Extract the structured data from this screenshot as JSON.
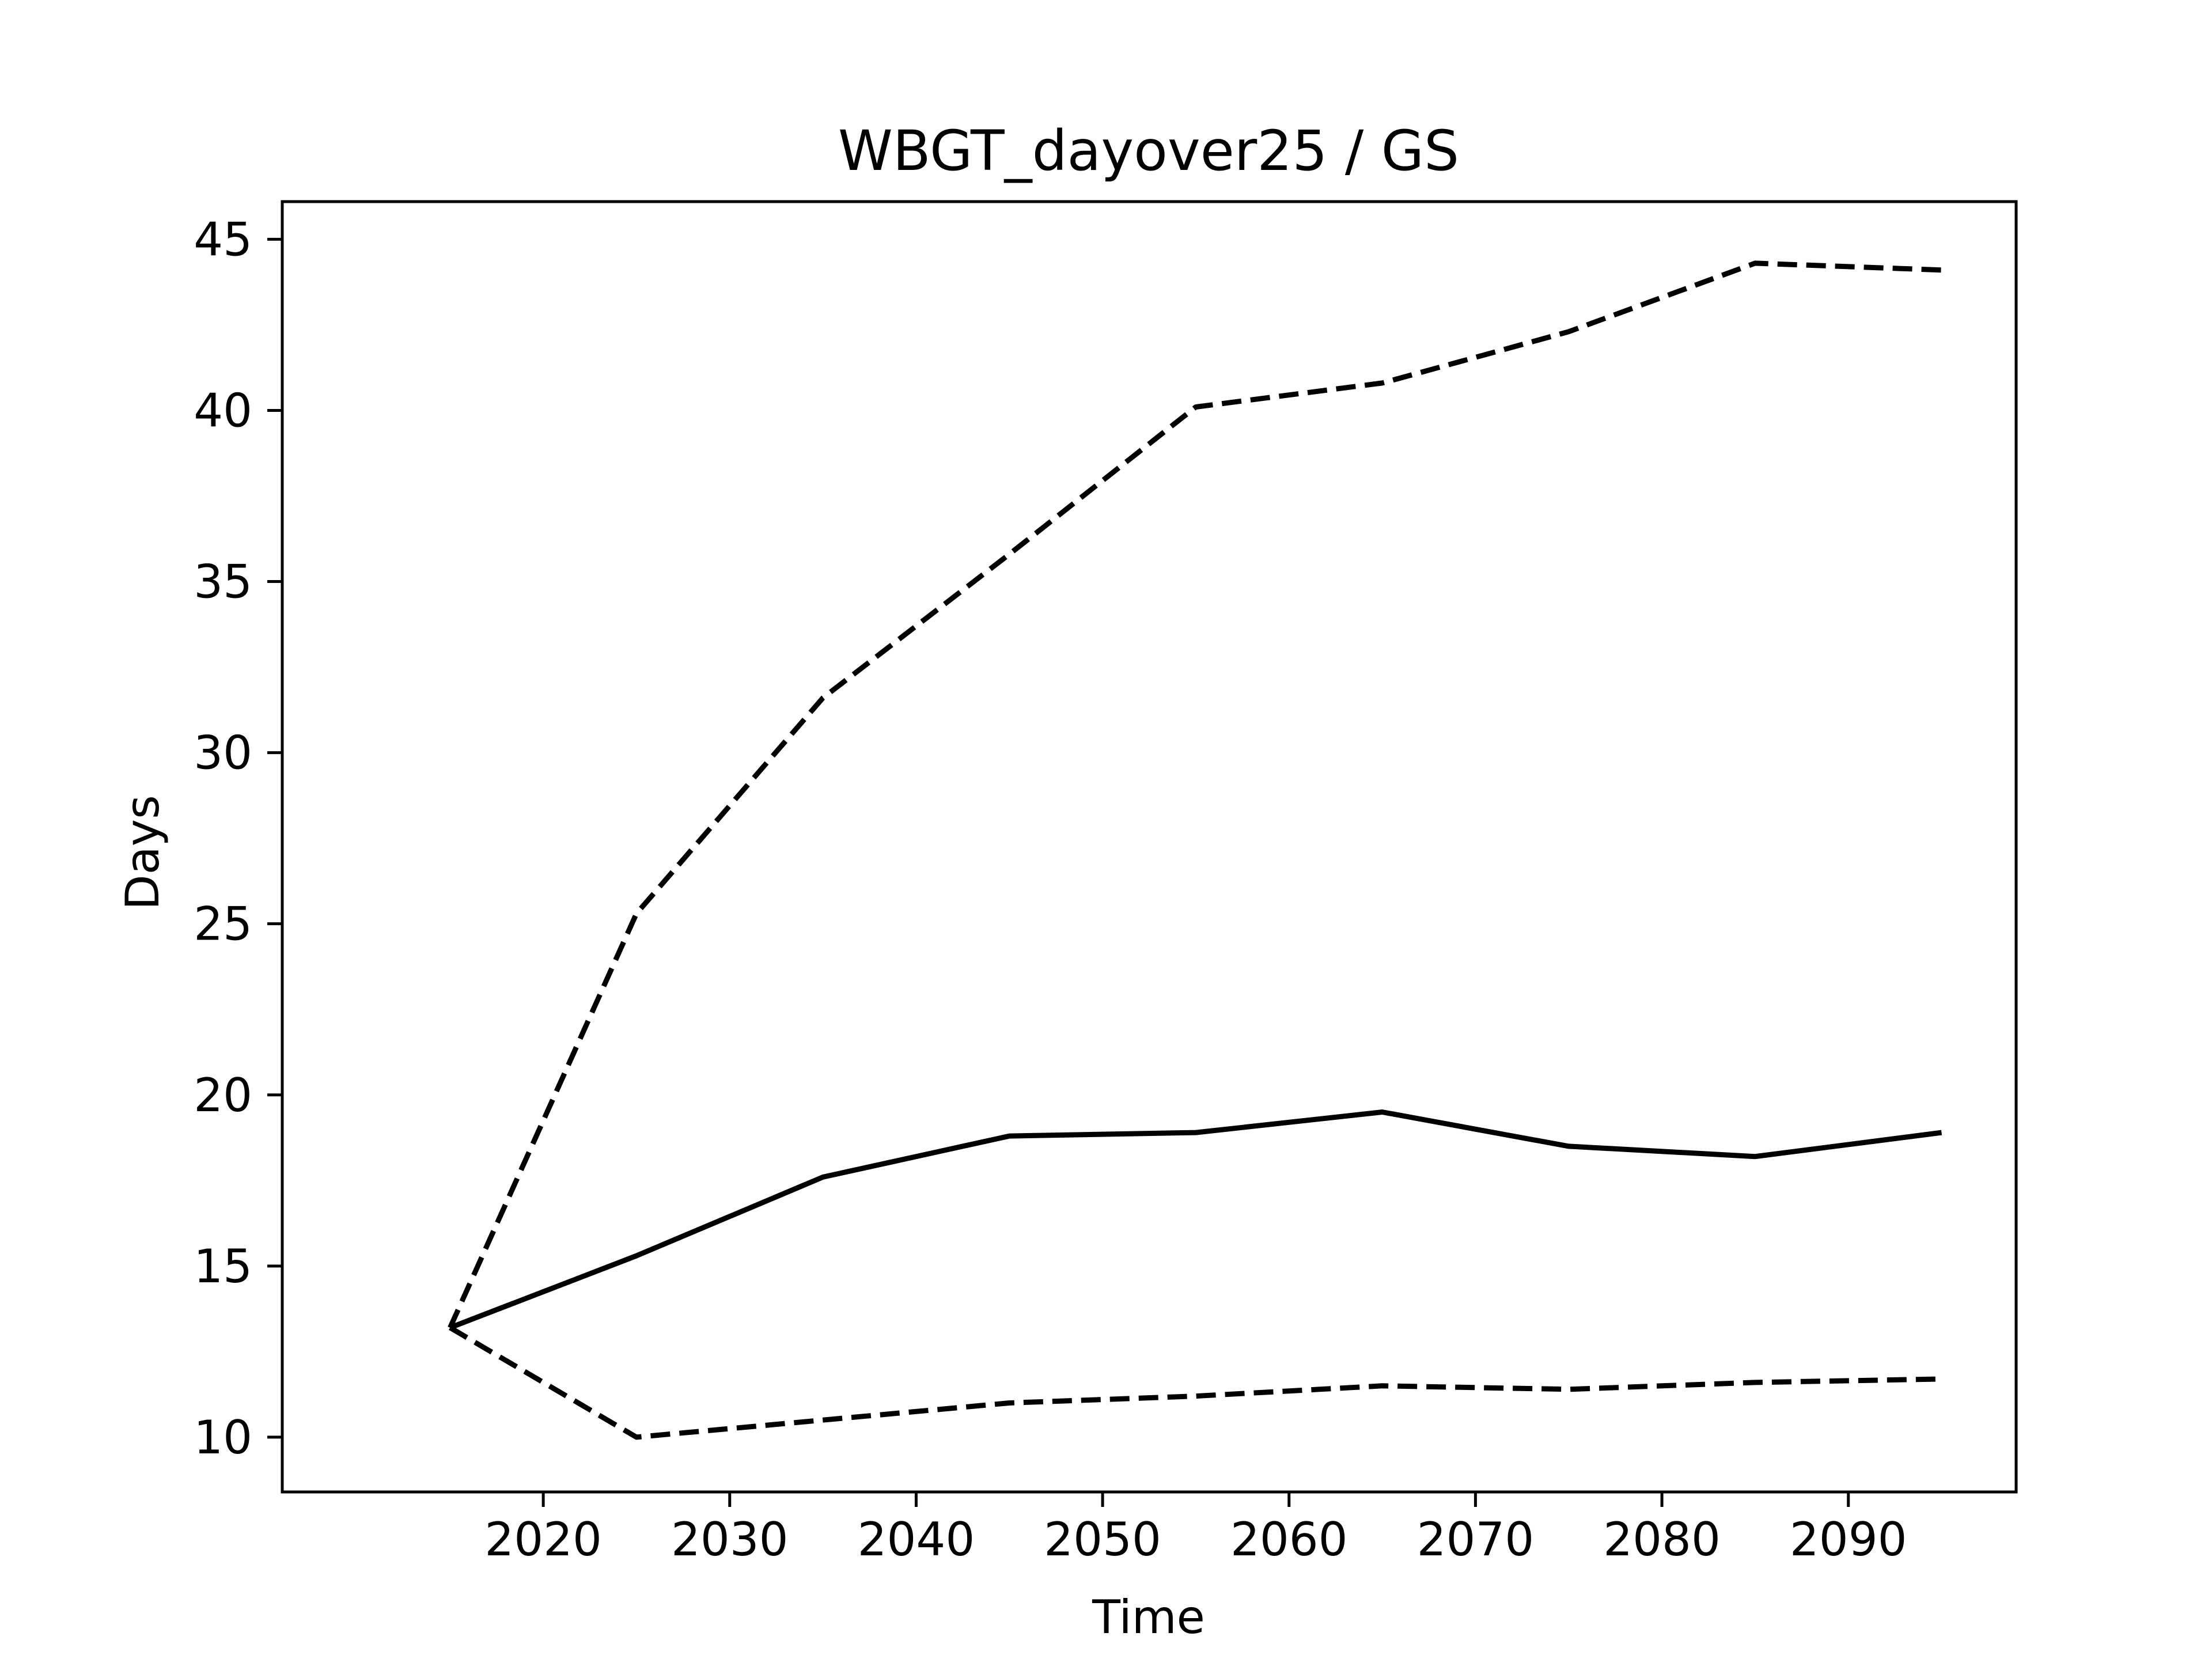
{
  "chart_data": {
    "type": "line",
    "title": "WBGT_dayover25 / GS",
    "xlabel": "Time",
    "ylabel": "Days",
    "x": [
      2015,
      2025,
      2035,
      2045,
      2055,
      2065,
      2075,
      2085,
      2095
    ],
    "xticks": [
      2020,
      2030,
      2040,
      2050,
      2060,
      2070,
      2080,
      2090
    ],
    "yticks": [
      10,
      15,
      20,
      25,
      30,
      35,
      40,
      45
    ],
    "xlim": [
      2006,
      2099
    ],
    "ylim": [
      8.4,
      46.1
    ],
    "grid": false,
    "series": [
      {
        "style": "solid",
        "color": "#000000",
        "values": [
          13.2,
          15.3,
          17.6,
          18.8,
          18.9,
          19.5,
          18.5,
          18.2,
          18.9
        ]
      },
      {
        "style": "dashed",
        "color": "#000000",
        "values": [
          13.2,
          25.3,
          31.6,
          35.8,
          40.1,
          40.8,
          42.3,
          44.3,
          44.1
        ]
      },
      {
        "style": "dashed",
        "color": "#000000",
        "values": [
          13.2,
          10.0,
          10.5,
          11.0,
          11.2,
          11.5,
          11.4,
          11.6,
          11.7
        ]
      }
    ]
  }
}
